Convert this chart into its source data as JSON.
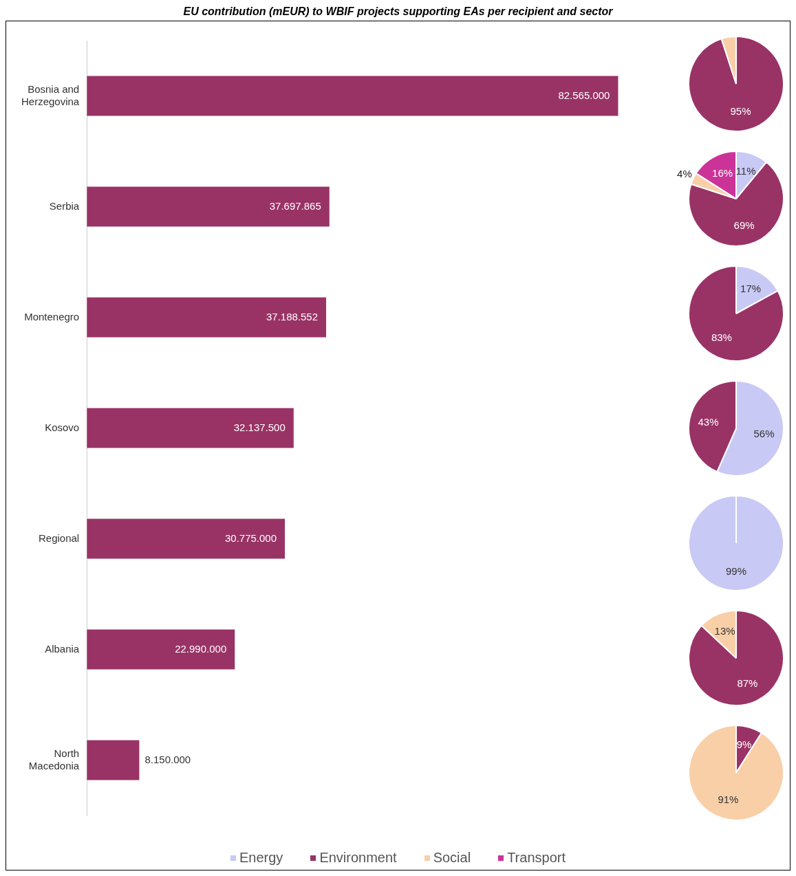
{
  "chart_data": [
    {
      "type": "bar",
      "title": "EU contribution (mEUR) to WBIF projects supporting EAs per recipient and sector",
      "orientation": "horizontal",
      "categories": [
        "Bosnia and Herzegovina",
        "Serbia",
        "Montenegro",
        "Kosovo",
        "Regional",
        "Albania",
        "North Macedonia"
      ],
      "values": [
        82565000,
        37697865,
        37188552,
        32137500,
        30775000,
        22990000,
        8150000
      ],
      "value_labels": [
        "82.565.000",
        "37.697.865",
        "37.188.552",
        "32.137.500",
        "30.775.000",
        "22.990.000",
        "8.150.000"
      ],
      "color": "#993366"
    },
    {
      "type": "pie",
      "categories": [
        "Energy",
        "Environment",
        "Social",
        "Transport"
      ],
      "colors": [
        "#c9c9f5",
        "#993366",
        "#f9cfa8",
        "#cc3399"
      ],
      "legend": "bottom",
      "series": [
        {
          "values": [
            0,
            95,
            5,
            0
          ],
          "value_labels": [
            null,
            "95%",
            null,
            null
          ]
        },
        {
          "values": [
            11,
            69,
            4,
            16
          ],
          "value_labels": [
            "11%",
            "69%",
            "4%",
            "16%"
          ]
        },
        {
          "values": [
            17,
            83,
            0,
            0
          ],
          "value_labels": [
            "17%",
            "83%",
            null,
            null
          ]
        },
        {
          "values": [
            56,
            43,
            0,
            0
          ],
          "value_labels": [
            "56%",
            "43%",
            null,
            null
          ]
        },
        {
          "values": [
            99,
            0,
            0,
            0
          ],
          "value_labels": [
            "99%",
            null,
            null,
            null
          ]
        },
        {
          "values": [
            0,
            87,
            13,
            0
          ],
          "value_labels": [
            null,
            "87%",
            "13%",
            null
          ]
        },
        {
          "values": [
            0,
            9,
            91,
            0
          ],
          "value_labels": [
            null,
            "9%",
            "91%",
            null
          ]
        }
      ]
    }
  ]
}
